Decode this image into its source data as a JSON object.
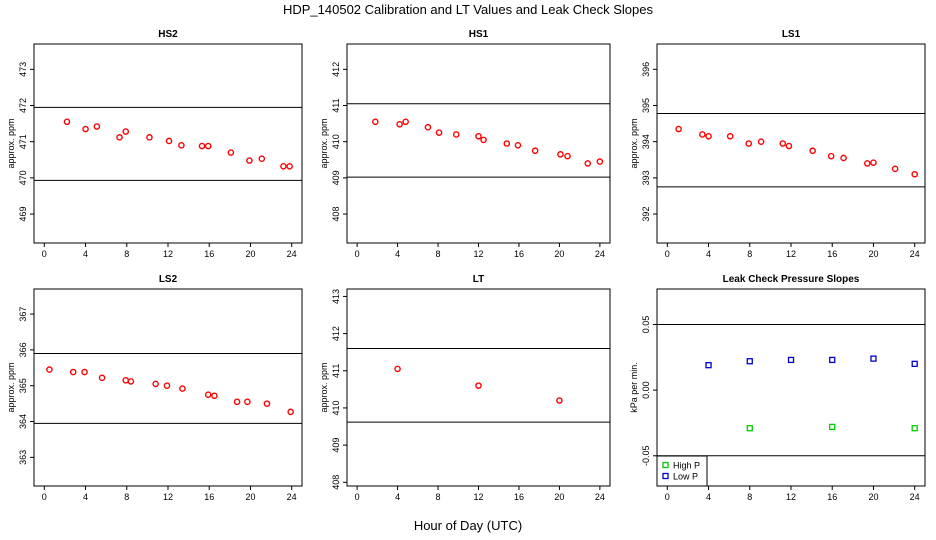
{
  "title": "HDP_140502  Calibration and LT Values and Leak Check Slopes",
  "xlabel": "Hour of Day (UTC)",
  "chart_data": [
    {
      "type": "scatter",
      "title": "HS2",
      "ylabel": "approx. ppm",
      "xlim": [
        -1,
        25
      ],
      "ylim": [
        468.2,
        473.7
      ],
      "xticks": [
        0,
        4,
        8,
        12,
        16,
        20,
        24
      ],
      "yticks": [
        469,
        470,
        471,
        472,
        473
      ],
      "hlines": [
        471.95,
        469.93
      ],
      "color": "#ff0000",
      "x": [
        2.2,
        4.0,
        5.1,
        7.3,
        7.9,
        10.2,
        12.1,
        13.3,
        15.3,
        15.9,
        18.1,
        19.9,
        21.1,
        23.2,
        23.8
      ],
      "y": [
        471.55,
        471.35,
        471.42,
        471.12,
        471.28,
        471.12,
        471.02,
        470.9,
        470.88,
        470.88,
        470.7,
        470.48,
        470.53,
        470.32,
        470.32
      ]
    },
    {
      "type": "scatter",
      "title": "HS1",
      "ylabel": "approx. ppm",
      "xlim": [
        -1,
        25
      ],
      "ylim": [
        407.2,
        412.7
      ],
      "xticks": [
        0,
        4,
        8,
        12,
        16,
        20,
        24
      ],
      "yticks": [
        408,
        409,
        410,
        411,
        412
      ],
      "hlines": [
        411.05,
        409.02
      ],
      "color": "#ff0000",
      "x": [
        1.8,
        4.2,
        4.8,
        7.0,
        8.1,
        9.8,
        12.0,
        12.5,
        14.8,
        15.9,
        17.6,
        20.1,
        20.8,
        22.8,
        24.0
      ],
      "y": [
        410.55,
        410.48,
        410.55,
        410.4,
        410.25,
        410.2,
        410.15,
        410.05,
        409.95,
        409.9,
        409.75,
        409.65,
        409.6,
        409.4,
        409.45
      ]
    },
    {
      "type": "scatter",
      "title": "LS1",
      "ylabel": "approx. ppm",
      "xlim": [
        -1,
        25
      ],
      "ylim": [
        391.2,
        396.7
      ],
      "xticks": [
        0,
        4,
        8,
        12,
        16,
        20,
        24
      ],
      "yticks": [
        392,
        393,
        394,
        395,
        396
      ],
      "hlines": [
        394.78,
        392.75
      ],
      "color": "#ff0000",
      "x": [
        1.1,
        3.4,
        4.0,
        6.1,
        7.9,
        9.1,
        11.2,
        11.8,
        14.1,
        15.9,
        17.1,
        19.4,
        20.0,
        22.1,
        24.0
      ],
      "y": [
        394.35,
        394.2,
        394.15,
        394.15,
        393.95,
        394.0,
        393.95,
        393.88,
        393.75,
        393.6,
        393.55,
        393.4,
        393.42,
        393.25,
        393.1
      ]
    },
    {
      "type": "scatter",
      "title": "LS2",
      "ylabel": "approx. ppm",
      "xlim": [
        -1,
        25
      ],
      "ylim": [
        362.2,
        367.7
      ],
      "xticks": [
        0,
        4,
        8,
        12,
        16,
        20,
        24
      ],
      "yticks": [
        363,
        364,
        365,
        366,
        367
      ],
      "hlines": [
        365.9,
        363.95
      ],
      "color": "#ff0000",
      "x": [
        0.5,
        2.8,
        3.9,
        5.6,
        7.9,
        8.4,
        10.8,
        11.9,
        13.4,
        15.9,
        16.5,
        18.7,
        19.7,
        21.6,
        23.9
      ],
      "y": [
        365.45,
        365.38,
        365.38,
        365.22,
        365.15,
        365.12,
        365.05,
        365.0,
        364.92,
        364.75,
        364.72,
        364.55,
        364.55,
        364.5,
        364.27
      ]
    },
    {
      "type": "scatter",
      "title": "LT",
      "ylabel": "approx. ppm",
      "xlim": [
        -1,
        25
      ],
      "ylim": [
        407.9,
        413.2
      ],
      "xticks": [
        0,
        4,
        8,
        12,
        16,
        20,
        24
      ],
      "yticks": [
        408,
        409,
        410,
        411,
        412,
        413
      ],
      "hlines": [
        411.6,
        409.62
      ],
      "color": "#ff0000",
      "x": [
        4.0,
        12.0,
        20.0
      ],
      "y": [
        411.05,
        410.6,
        410.2
      ]
    },
    {
      "type": "scatter",
      "title": "Leak Check Pressure Slopes",
      "ylabel": "kPa per min.",
      "xlim": [
        -1,
        25
      ],
      "ylim": [
        -0.073,
        0.077
      ],
      "xticks": [
        0,
        4,
        8,
        12,
        16,
        20,
        24
      ],
      "yticks": [
        -0.05,
        0.0,
        0.05
      ],
      "ytick_labels": [
        "-0.05",
        "0.00",
        "0.05"
      ],
      "hlines": [
        0.05,
        -0.05
      ],
      "series": [
        {
          "name": "High P",
          "color": "#00cc00",
          "x": [
            8,
            16,
            24
          ],
          "y": [
            -0.029,
            -0.028,
            -0.029
          ]
        },
        {
          "name": "Low P",
          "color": "#0000cc",
          "x": [
            4,
            8,
            12,
            16,
            20,
            24
          ],
          "y": [
            0.019,
            0.022,
            0.023,
            0.023,
            0.024,
            0.02
          ]
        }
      ],
      "legend": "bottom-left"
    }
  ]
}
